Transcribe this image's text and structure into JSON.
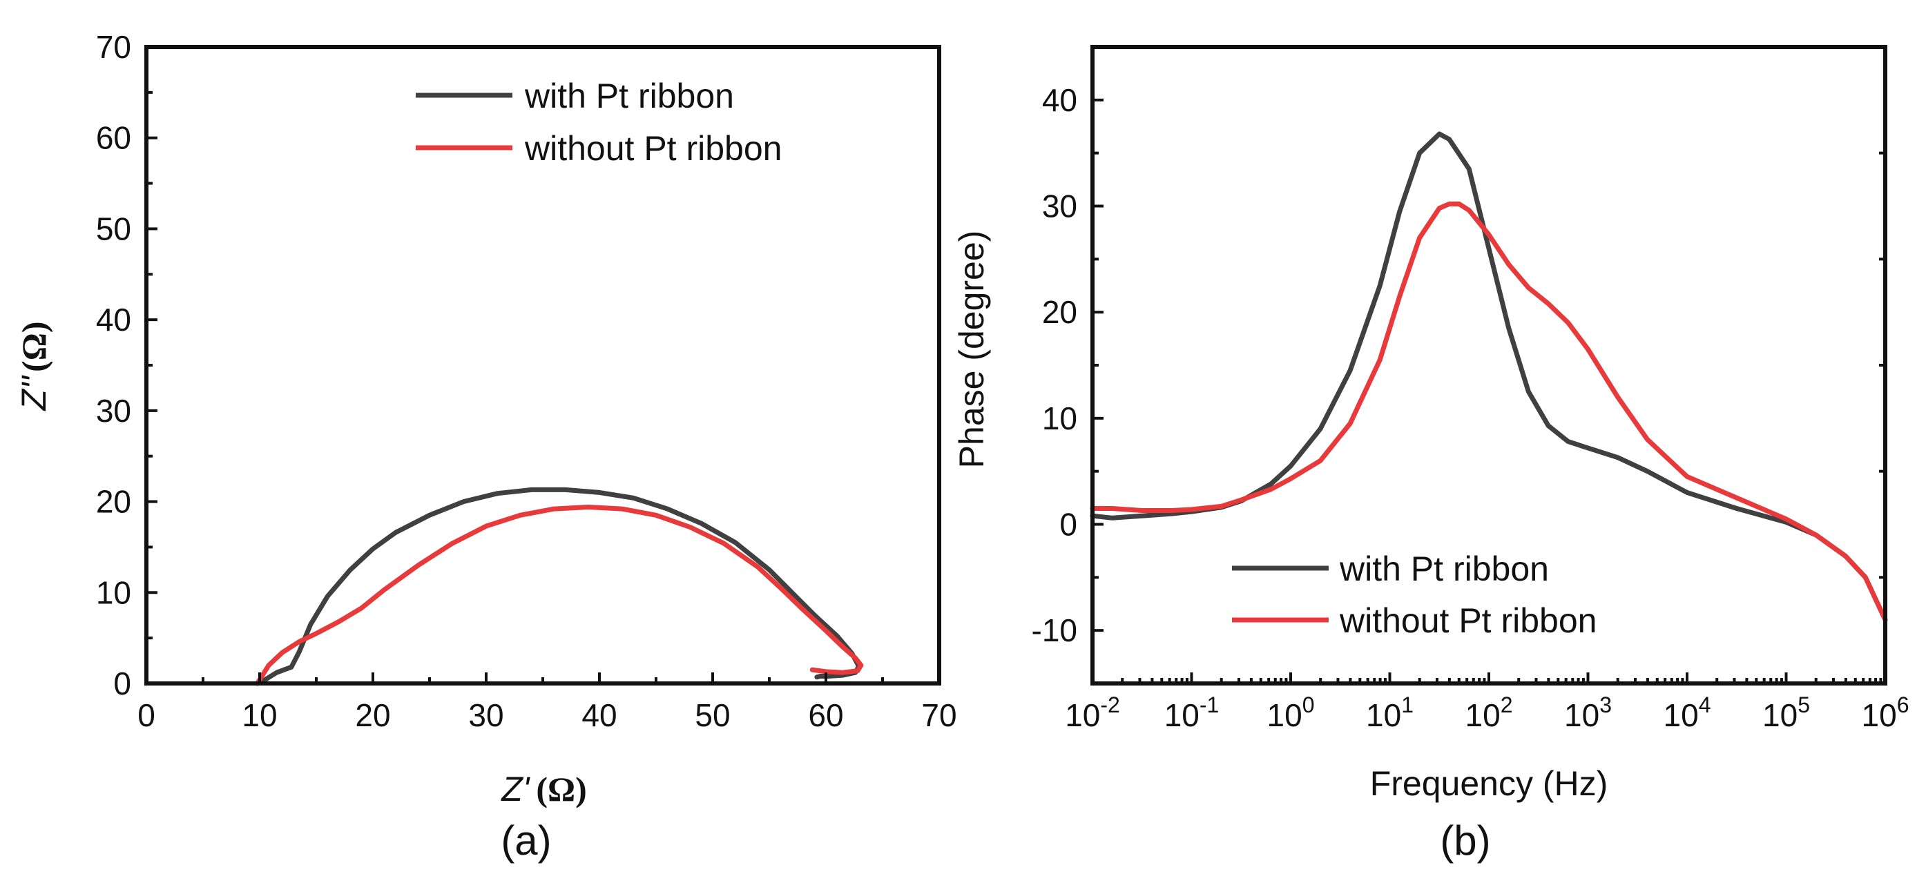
{
  "colors": {
    "with": "#404040",
    "without": "#e8393b"
  },
  "legend": {
    "with": "with Pt ribbon",
    "without": "without Pt ribbon"
  },
  "panel_a_label": "(a)",
  "panel_b_label": "(b)",
  "chart_data": [
    {
      "type": "line",
      "panel": "(a)",
      "title": "",
      "xlabel_main": "Z'",
      "xlabel_unit": "(Ω)",
      "ylabel_main": "Z''",
      "ylabel_unit": "(Ω)",
      "xlim": [
        0,
        70
      ],
      "ylim": [
        0,
        70
      ],
      "xticks": [
        0,
        10,
        20,
        30,
        40,
        50,
        60,
        70
      ],
      "yticks": [
        0,
        10,
        20,
        30,
        40,
        50,
        60,
        70
      ],
      "xtick_labels": [
        "0",
        "10",
        "20",
        "30",
        "40",
        "50",
        "60",
        "70"
      ],
      "ytick_labels": [
        "0",
        "10",
        "20",
        "30",
        "40",
        "50",
        "60",
        "70"
      ],
      "legend_position": "top-right",
      "series": [
        {
          "name": "with Pt ribbon",
          "key": "with",
          "x": [
            10.2,
            11.5,
            12.8,
            13.5,
            14.5,
            16,
            18,
            20,
            22,
            25,
            28,
            31,
            34,
            37,
            40,
            43,
            46,
            49,
            52,
            55,
            57,
            59,
            61,
            62.3,
            62.9,
            62.6,
            61.5,
            60.2,
            59.5,
            59.2
          ],
          "y": [
            0.2,
            1.2,
            1.8,
            3.5,
            6.5,
            9.6,
            12.5,
            14.8,
            16.6,
            18.5,
            20,
            20.9,
            21.3,
            21.3,
            21.0,
            20.4,
            19.2,
            17.6,
            15.5,
            12.5,
            10.0,
            7.5,
            5.2,
            3.3,
            1.9,
            1.2,
            0.9,
            0.8,
            0.8,
            0.7
          ]
        },
        {
          "name": "without Pt ribbon",
          "key": "without",
          "x": [
            9.8,
            10.8,
            12,
            13.5,
            15,
            17,
            19,
            21,
            24,
            27,
            30,
            33,
            36,
            39,
            42,
            45,
            48,
            51,
            54,
            56,
            58,
            60,
            61.5,
            62.6,
            63.1,
            62.8,
            61.5,
            60,
            58.8
          ],
          "y": [
            0,
            2.0,
            3.4,
            4.6,
            5.5,
            6.8,
            8.3,
            10.3,
            13.0,
            15.4,
            17.3,
            18.5,
            19.2,
            19.4,
            19.2,
            18.5,
            17.2,
            15.4,
            12.8,
            10.5,
            8.1,
            5.8,
            4.0,
            2.8,
            2.0,
            1.4,
            1.2,
            1.3,
            1.5
          ]
        }
      ]
    },
    {
      "type": "line",
      "panel": "(b)",
      "title": "",
      "xlabel": "Frequency (Hz)",
      "ylabel": "Phase (degree)",
      "xscale": "log",
      "xlim_log10": [
        -2,
        6
      ],
      "ylim": [
        -15,
        45
      ],
      "xtick_exponents": [
        "-2",
        "-1",
        "0",
        "1",
        "2",
        "3",
        "4",
        "5",
        "6"
      ],
      "xtick_base": "10",
      "yticks": [
        -10,
        0,
        10,
        20,
        30,
        40
      ],
      "ytick_labels": [
        "-10",
        "0",
        "10",
        "20",
        "30",
        "40"
      ],
      "legend_position": "bottom-center",
      "series": [
        {
          "name": "with Pt ribbon",
          "key": "with",
          "log10_freq": [
            -2,
            -1.8,
            -1.5,
            -1.2,
            -1,
            -0.7,
            -0.5,
            -0.2,
            0,
            0.3,
            0.6,
            0.9,
            1.1,
            1.3,
            1.5,
            1.6,
            1.8,
            2,
            2.2,
            2.4,
            2.6,
            2.8,
            3,
            3.3,
            3.6,
            4,
            4.5,
            5,
            5.3,
            5.6,
            5.8,
            6
          ],
          "phase": [
            0.8,
            0.6,
            0.8,
            1.0,
            1.2,
            1.6,
            2.2,
            3.8,
            5.5,
            9.0,
            14.5,
            22.5,
            29.5,
            35.0,
            36.8,
            36.3,
            33.5,
            26.0,
            18.5,
            12.5,
            9.3,
            7.8,
            7.2,
            6.3,
            5.0,
            3.0,
            1.5,
            0.2,
            -1.0,
            -3.0,
            -5.0,
            -9.0
          ]
        },
        {
          "name": "without Pt ribbon",
          "key": "without",
          "log10_freq": [
            -2,
            -1.8,
            -1.5,
            -1.2,
            -1,
            -0.7,
            -0.5,
            -0.2,
            0,
            0.3,
            0.6,
            0.9,
            1.1,
            1.3,
            1.5,
            1.6,
            1.7,
            1.8,
            2,
            2.2,
            2.4,
            2.6,
            2.8,
            3,
            3.3,
            3.6,
            4,
            4.5,
            5,
            5.3,
            5.6,
            5.8,
            6
          ],
          "phase": [
            1.5,
            1.5,
            1.3,
            1.3,
            1.4,
            1.7,
            2.3,
            3.3,
            4.3,
            6.0,
            9.5,
            15.5,
            21.5,
            27.0,
            29.8,
            30.2,
            30.2,
            29.6,
            27.3,
            24.5,
            22.3,
            20.8,
            19.0,
            16.5,
            12.0,
            8.0,
            4.5,
            2.5,
            0.5,
            -1.0,
            -3.0,
            -5.0,
            -9.0
          ]
        }
      ]
    }
  ]
}
